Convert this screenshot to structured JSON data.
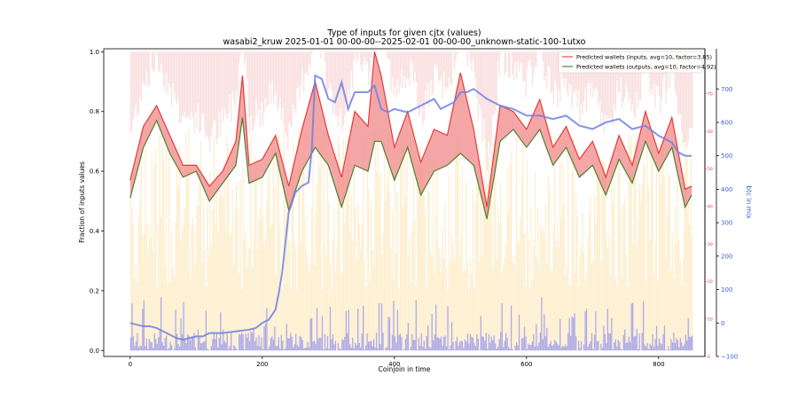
{
  "chart_data": {
    "type": "line",
    "title": "Type of inputs for given cjtx (values)",
    "subtitle": "wasabi2_kruw 2025-01-01 00-00-00--2025-02-01 00-00-00_unknown-static-100-1utxo",
    "xlabel": "Coinjoin in time",
    "ylabel": "Fraction of inputs values",
    "y2label": "btc in mix",
    "xlim": [
      -40,
      870
    ],
    "ylim": [
      -0.02,
      1.01
    ],
    "y2lim": [
      -100,
      820
    ],
    "y3lim": [
      0,
      82
    ],
    "x_ticks": [
      "0",
      "200",
      "400",
      "600",
      "800"
    ],
    "y_ticks": [
      "0.0",
      "0.2",
      "0.4",
      "0.6",
      "0.8",
      "1.0"
    ],
    "y2_ticks": [
      "−100",
      "0",
      "100",
      "200",
      "300",
      "400",
      "500",
      "600",
      "700"
    ],
    "y3_ticks": [
      "0",
      "10",
      "20",
      "30",
      "40",
      "50",
      "60",
      "70"
    ],
    "legend_position": "top-right",
    "legend": [
      {
        "label": "Predicted wallets (inputs, avg=10, factor=3.85)",
        "color": "#e8504c"
      },
      {
        "label": "Predicted wallets (outputs, avg=10, factor=4.92)",
        "color": "#5a8a3a"
      }
    ],
    "colors": {
      "inputs_line": "#e63a3a",
      "outputs_line": "#4f7f2f",
      "fill_between": "#f08080",
      "btc_line": "#7080e0",
      "bars_top": "#f6c6c6",
      "bars_mid": "#fbe2a8",
      "bars_bottom": "#8c8cf0",
      "right_axis_red": "#d63a3a",
      "right_axis_blue": "#4060d0"
    },
    "series": [
      {
        "name": "Predicted wallets (inputs, avg=10, factor=3.85)",
        "x": [
          0,
          20,
          40,
          60,
          80,
          100,
          120,
          140,
          160,
          170,
          180,
          200,
          220,
          240,
          260,
          280,
          300,
          320,
          340,
          360,
          370,
          380,
          400,
          420,
          440,
          460,
          480,
          500,
          520,
          540,
          560,
          580,
          600,
          620,
          640,
          660,
          680,
          700,
          720,
          740,
          760,
          780,
          800,
          820,
          840,
          850
        ],
        "values": [
          0.57,
          0.75,
          0.82,
          0.72,
          0.62,
          0.62,
          0.55,
          0.6,
          0.7,
          0.92,
          0.62,
          0.64,
          0.72,
          0.55,
          0.74,
          0.9,
          0.72,
          0.58,
          0.8,
          0.75,
          1.0,
          0.92,
          0.68,
          0.8,
          0.63,
          0.74,
          0.72,
          0.93,
          0.74,
          0.48,
          0.82,
          0.8,
          0.74,
          0.84,
          0.68,
          0.75,
          0.64,
          0.7,
          0.58,
          0.72,
          0.62,
          0.8,
          0.66,
          0.78,
          0.54,
          0.55
        ]
      },
      {
        "name": "Predicted wallets (outputs, avg=10, factor=4.92)",
        "x": [
          0,
          20,
          40,
          60,
          80,
          100,
          120,
          140,
          160,
          170,
          180,
          200,
          220,
          240,
          260,
          280,
          300,
          320,
          340,
          360,
          370,
          380,
          400,
          420,
          440,
          460,
          480,
          500,
          520,
          540,
          560,
          580,
          600,
          620,
          640,
          660,
          680,
          700,
          720,
          740,
          760,
          780,
          800,
          820,
          840,
          850
        ],
        "values": [
          0.51,
          0.68,
          0.77,
          0.66,
          0.58,
          0.6,
          0.5,
          0.56,
          0.62,
          0.78,
          0.56,
          0.58,
          0.66,
          0.47,
          0.6,
          0.68,
          0.62,
          0.48,
          0.62,
          0.6,
          0.7,
          0.7,
          0.57,
          0.68,
          0.52,
          0.6,
          0.62,
          0.66,
          0.62,
          0.44,
          0.7,
          0.74,
          0.68,
          0.74,
          0.62,
          0.68,
          0.58,
          0.62,
          0.52,
          0.64,
          0.56,
          0.7,
          0.6,
          0.68,
          0.48,
          0.52
        ]
      },
      {
        "name": "btc in mix",
        "x": [
          0,
          10,
          20,
          30,
          40,
          50,
          60,
          70,
          80,
          90,
          100,
          110,
          120,
          140,
          160,
          180,
          190,
          200,
          210,
          220,
          225,
          230,
          240,
          250,
          260,
          270,
          275,
          280,
          290,
          300,
          310,
          320,
          330,
          340,
          360,
          370,
          380,
          390,
          400,
          420,
          440,
          460,
          470,
          480,
          490,
          500,
          510,
          520,
          540,
          560,
          580,
          600,
          620,
          640,
          660,
          680,
          700,
          720,
          740,
          760,
          780,
          800,
          820,
          830,
          840,
          850
        ],
        "values": [
          0,
          -5,
          -10,
          -10,
          -15,
          -25,
          -35,
          -45,
          -50,
          -45,
          -40,
          -40,
          -30,
          -30,
          -25,
          -20,
          -15,
          0,
          10,
          40,
          90,
          150,
          330,
          390,
          410,
          420,
          520,
          740,
          730,
          670,
          660,
          720,
          640,
          690,
          690,
          710,
          640,
          630,
          640,
          630,
          650,
          670,
          640,
          650,
          660,
          690,
          690,
          700,
          670,
          650,
          640,
          620,
          620,
          610,
          620,
          590,
          580,
          600,
          610,
          580,
          590,
          560,
          540,
          510,
          500,
          500
        ]
      }
    ]
  }
}
